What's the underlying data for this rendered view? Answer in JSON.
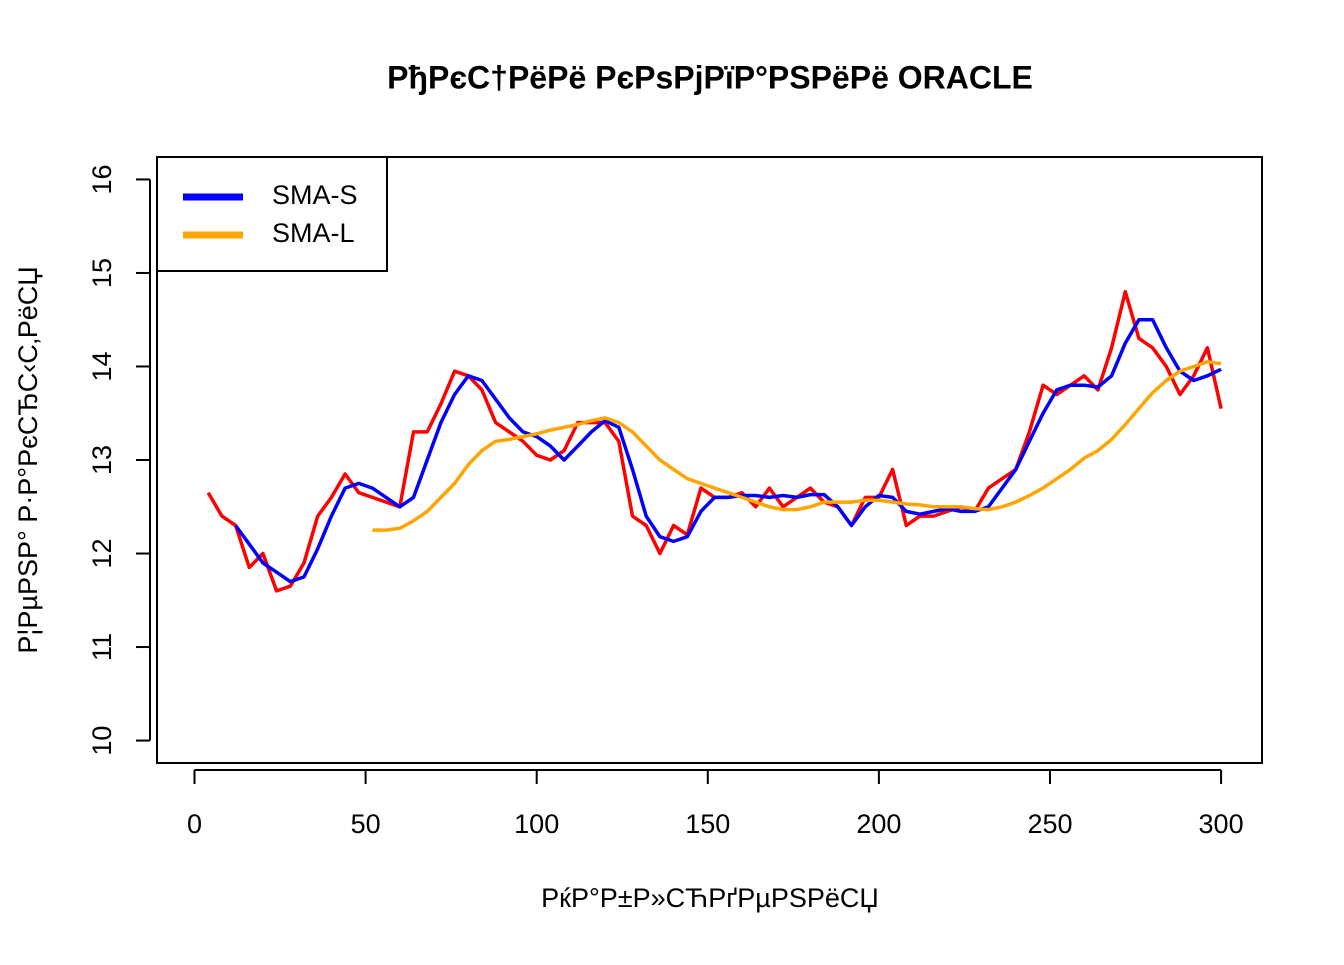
{
  "chart_data": {
    "type": "line",
    "title": "PђPєC†PëPë PєPsPjPïP°PSPëPë ORACLE",
    "x_label": "PќP°P±P»CЋPґPµPSPëCЏ",
    "y_label": "P¦PµPSP° P·P°PєCЂC‹C‚PëCЏ",
    "x": [
      4,
      8,
      12,
      16,
      20,
      24,
      28,
      32,
      36,
      40,
      44,
      48,
      52,
      56,
      60,
      64,
      68,
      72,
      76,
      80,
      84,
      88,
      92,
      96,
      100,
      104,
      108,
      112,
      116,
      120,
      124,
      128,
      132,
      136,
      140,
      144,
      148,
      152,
      156,
      160,
      164,
      168,
      172,
      176,
      180,
      184,
      188,
      192,
      196,
      200,
      204,
      208,
      212,
      216,
      220,
      224,
      228,
      232,
      236,
      240,
      244,
      248,
      252,
      256,
      260,
      264,
      268,
      272,
      276,
      280,
      284,
      288,
      292,
      296,
      300
    ],
    "series": [
      {
        "color": "#ff0000",
        "values": [
          12.65,
          12.4,
          12.3,
          11.85,
          12.0,
          11.6,
          11.65,
          11.9,
          12.4,
          12.6,
          12.85,
          12.65,
          12.6,
          12.55,
          12.5,
          13.3,
          13.3,
          13.6,
          13.95,
          13.9,
          13.75,
          13.4,
          13.3,
          13.2,
          13.05,
          13.0,
          13.1,
          13.4,
          13.4,
          13.4,
          13.2,
          12.4,
          12.3,
          12.0,
          12.3,
          12.2,
          12.7,
          12.6,
          12.6,
          12.65,
          12.5,
          12.7,
          12.5,
          12.6,
          12.7,
          12.55,
          12.5,
          12.3,
          12.6,
          12.6,
          12.9,
          12.3,
          12.4,
          12.4,
          12.45,
          12.5,
          12.45,
          12.7,
          12.8,
          12.9,
          13.3,
          13.8,
          13.7,
          13.8,
          13.9,
          13.75,
          14.2,
          14.8,
          14.3,
          14.2,
          14.0,
          13.7,
          13.9,
          14.2,
          13.55
        ]
      },
      {
        "name": "SMA-S",
        "color": "#0000ff",
        "values": [
          null,
          null,
          12.3,
          12.1,
          11.9,
          11.8,
          11.7,
          11.75,
          12.05,
          12.4,
          12.7,
          12.75,
          12.7,
          12.6,
          12.5,
          12.6,
          13.0,
          13.4,
          13.7,
          13.9,
          13.85,
          13.65,
          13.45,
          13.3,
          13.25,
          13.15,
          13.0,
          13.15,
          13.3,
          13.42,
          13.35,
          12.9,
          12.4,
          12.18,
          12.13,
          12.18,
          12.45,
          12.6,
          12.6,
          12.62,
          12.62,
          12.6,
          12.62,
          12.6,
          12.63,
          12.63,
          12.5,
          12.3,
          12.5,
          12.62,
          12.6,
          12.45,
          12.42,
          12.45,
          12.48,
          12.45,
          12.45,
          12.5,
          12.7,
          12.9,
          13.2,
          13.5,
          13.75,
          13.8,
          13.8,
          13.78,
          13.9,
          14.25,
          14.5,
          14.5,
          14.2,
          13.95,
          13.85,
          13.9,
          13.97
        ]
      },
      {
        "name": "SMA-L",
        "color": "#ffa500",
        "values": [
          null,
          null,
          null,
          null,
          null,
          null,
          null,
          null,
          null,
          null,
          null,
          null,
          12.25,
          12.25,
          12.27,
          12.35,
          12.45,
          12.6,
          12.75,
          12.95,
          13.1,
          13.2,
          13.22,
          13.25,
          13.28,
          13.32,
          13.35,
          13.38,
          13.42,
          13.45,
          13.4,
          13.3,
          13.15,
          13.0,
          12.9,
          12.8,
          12.75,
          12.7,
          12.65,
          12.6,
          12.55,
          12.5,
          12.47,
          12.47,
          12.5,
          12.55,
          12.55,
          12.55,
          12.57,
          12.57,
          12.55,
          12.53,
          12.52,
          12.5,
          12.5,
          12.5,
          12.48,
          12.47,
          12.5,
          12.55,
          12.62,
          12.7,
          12.8,
          12.9,
          13.02,
          13.1,
          13.22,
          13.38,
          13.55,
          13.72,
          13.85,
          13.95,
          14.0,
          14.05,
          14.03
        ]
      }
    ],
    "xlim": [
      -10.96,
      311.96
    ],
    "ylim": [
      9.76,
      16.24
    ],
    "xticks": [
      0,
      50,
      100,
      150,
      200,
      250,
      300
    ],
    "yticks": [
      10,
      11,
      12,
      13,
      14,
      15,
      16
    ],
    "legend": "topleft"
  }
}
